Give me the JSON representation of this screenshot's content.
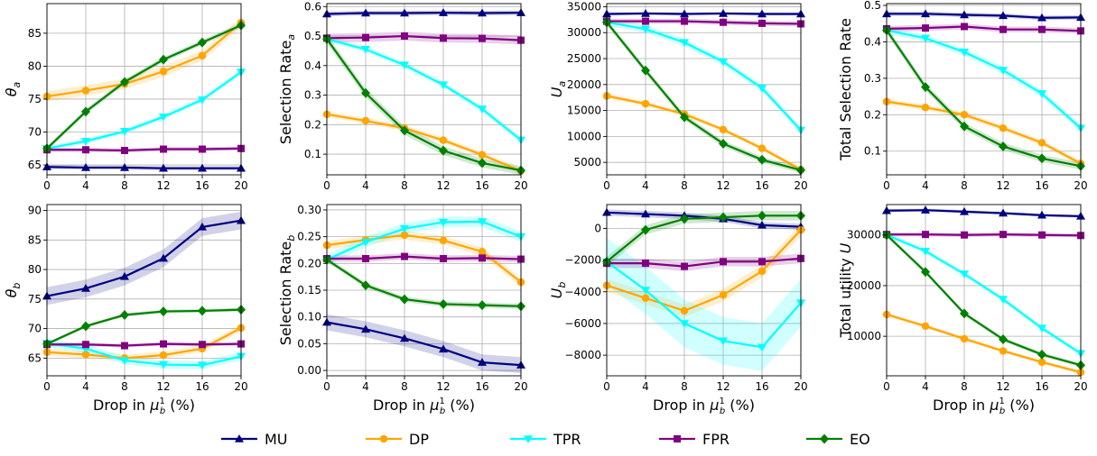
{
  "colors": {
    "MU": "#000080",
    "DP": "#FFA500",
    "TPR": "#00FFFF",
    "FPR": "#800080",
    "EO": "#008000"
  },
  "legend": [
    {
      "key": "MU",
      "label": "MU",
      "marker": "triangle-up"
    },
    {
      "key": "DP",
      "label": "DP",
      "marker": "circle"
    },
    {
      "key": "TPR",
      "label": "TPR",
      "marker": "triangle-down"
    },
    {
      "key": "FPR",
      "label": "FPR",
      "marker": "square"
    },
    {
      "key": "EO",
      "label": "EO",
      "marker": "diamond"
    }
  ],
  "chart_data": [
    {
      "type": "line",
      "ylabel_main": "θ",
      "ylabel_sub": "a",
      "xlabel": "",
      "x": [
        0,
        4,
        8,
        12,
        16,
        20
      ],
      "xlim": [
        0,
        20
      ],
      "ylim": [
        63.5,
        89.5
      ],
      "yticks": [
        65,
        70,
        75,
        80,
        85
      ],
      "grid": true,
      "series": [
        {
          "name": "MU",
          "values": [
            64.7,
            64.6,
            64.6,
            64.5,
            64.5,
            64.5
          ],
          "band": 0.3
        },
        {
          "name": "DP",
          "values": [
            75.4,
            76.3,
            77.3,
            79.2,
            81.6,
            86.6
          ],
          "band": 0.8
        },
        {
          "name": "TPR",
          "values": [
            67.5,
            68.6,
            70.1,
            72.3,
            74.9,
            79.1
          ],
          "band": 0.4
        },
        {
          "name": "FPR",
          "values": [
            67.3,
            67.3,
            67.2,
            67.4,
            67.4,
            67.5
          ],
          "band": 0.3
        },
        {
          "name": "EO",
          "values": [
            67.5,
            73.1,
            77.6,
            81.0,
            83.6,
            86.2
          ],
          "band": 0.4
        }
      ]
    },
    {
      "type": "line",
      "ylabel_main": "Selection Rate",
      "ylabel_sub": "a",
      "xlabel": "",
      "x": [
        0,
        4,
        8,
        12,
        16,
        20
      ],
      "xlim": [
        0,
        20
      ],
      "ylim": [
        0.03,
        0.61
      ],
      "yticks": [
        0.1,
        0.2,
        0.3,
        0.4,
        0.5,
        0.6
      ],
      "grid": true,
      "series": [
        {
          "name": "MU",
          "values": [
            0.575,
            0.578,
            0.578,
            0.579,
            0.578,
            0.579
          ],
          "band": 0.008
        },
        {
          "name": "DP",
          "values": [
            0.235,
            0.213,
            0.188,
            0.147,
            0.098,
            0.043
          ],
          "band": 0.01
        },
        {
          "name": "TPR",
          "values": [
            0.49,
            0.455,
            0.402,
            0.335,
            0.253,
            0.148
          ],
          "band": 0.01
        },
        {
          "name": "FPR",
          "values": [
            0.493,
            0.495,
            0.5,
            0.493,
            0.492,
            0.486
          ],
          "band": 0.015
        },
        {
          "name": "EO",
          "values": [
            0.49,
            0.307,
            0.18,
            0.112,
            0.07,
            0.045
          ],
          "band": 0.015
        }
      ]
    },
    {
      "type": "line",
      "ylabel_main": "U",
      "ylabel_sub": "a",
      "xlabel": "",
      "x": [
        0,
        4,
        8,
        12,
        16,
        20
      ],
      "xlim": [
        0,
        20
      ],
      "ylim": [
        2600,
        35600
      ],
      "yticks": [
        5000,
        10000,
        15000,
        20000,
        25000,
        30000,
        35000
      ],
      "grid": true,
      "series": [
        {
          "name": "MU",
          "values": [
            33600,
            33700,
            33600,
            33700,
            33600,
            33600
          ],
          "band": 300
        },
        {
          "name": "DP",
          "values": [
            17800,
            16300,
            14300,
            11300,
            7700,
            3600
          ],
          "band": 500
        },
        {
          "name": "TPR",
          "values": [
            32000,
            30700,
            28100,
            24400,
            19300,
            11200
          ],
          "band": 700
        },
        {
          "name": "FPR",
          "values": [
            32200,
            32200,
            32200,
            32000,
            31800,
            31700
          ],
          "band": 500
        },
        {
          "name": "EO",
          "values": [
            32000,
            22700,
            13700,
            8600,
            5500,
            3500
          ],
          "band": 600
        }
      ]
    },
    {
      "type": "line",
      "ylabel_main": "Total Selection Rate",
      "ylabel_sub": "",
      "xlabel": "",
      "x": [
        0,
        4,
        8,
        12,
        16,
        20
      ],
      "xlim": [
        0,
        20
      ],
      "ylim": [
        0.035,
        0.505
      ],
      "yticks": [
        0.1,
        0.2,
        0.3,
        0.4,
        0.5
      ],
      "grid": true,
      "series": [
        {
          "name": "MU",
          "values": [
            0.477,
            0.477,
            0.474,
            0.472,
            0.466,
            0.467
          ],
          "band": 0.006
        },
        {
          "name": "DP",
          "values": [
            0.236,
            0.22,
            0.2,
            0.163,
            0.123,
            0.066
          ],
          "band": 0.008
        },
        {
          "name": "TPR",
          "values": [
            0.432,
            0.41,
            0.372,
            0.322,
            0.258,
            0.163
          ],
          "band": 0.01
        },
        {
          "name": "FPR",
          "values": [
            0.436,
            0.438,
            0.442,
            0.434,
            0.434,
            0.43
          ],
          "band": 0.008
        },
        {
          "name": "EO",
          "values": [
            0.432,
            0.276,
            0.168,
            0.113,
            0.08,
            0.059
          ],
          "band": 0.01
        }
      ]
    },
    {
      "type": "line",
      "ylabel_main": "θ",
      "ylabel_sub": "b",
      "xlabel": "Drop in μ",
      "x": [
        0,
        4,
        8,
        12,
        16,
        20
      ],
      "xlim": [
        0,
        20
      ],
      "ylim": [
        62.0,
        91.0
      ],
      "yticks": [
        65,
        70,
        75,
        80,
        85,
        90
      ],
      "grid": true,
      "series": [
        {
          "name": "MU",
          "values": [
            75.5,
            76.8,
            78.8,
            81.9,
            87.2,
            88.3
          ],
          "band": 1.5
        },
        {
          "name": "DP",
          "values": [
            66.0,
            65.6,
            65.0,
            65.5,
            66.6,
            70.1
          ],
          "band": 0.6
        },
        {
          "name": "TPR",
          "values": [
            67.5,
            66.6,
            64.6,
            63.9,
            63.8,
            65.3
          ],
          "band": 0.7
        },
        {
          "name": "FPR",
          "values": [
            67.3,
            67.3,
            67.1,
            67.4,
            67.3,
            67.4
          ],
          "band": 0.3
        },
        {
          "name": "EO",
          "values": [
            67.4,
            70.4,
            72.3,
            72.9,
            73.0,
            73.2
          ],
          "band": 0.3
        }
      ]
    },
    {
      "type": "line",
      "ylabel_main": "Selection Rate",
      "ylabel_sub": "b",
      "xlabel": "Drop in μ",
      "x": [
        0,
        4,
        8,
        12,
        16,
        20
      ],
      "xlim": [
        0,
        20
      ],
      "ylim": [
        -0.01,
        0.31
      ],
      "yticks": [
        0.0,
        0.05,
        0.1,
        0.15,
        0.2,
        0.25,
        0.3
      ],
      "grid": true,
      "series": [
        {
          "name": "MU",
          "values": [
            0.09,
            0.077,
            0.06,
            0.04,
            0.015,
            0.01
          ],
          "band": 0.015
        },
        {
          "name": "DP",
          "values": [
            0.234,
            0.244,
            0.253,
            0.243,
            0.222,
            0.165
          ],
          "band": 0.008
        },
        {
          "name": "TPR",
          "values": [
            0.207,
            0.24,
            0.265,
            0.277,
            0.278,
            0.25
          ],
          "band": 0.01
        },
        {
          "name": "FPR",
          "values": [
            0.209,
            0.209,
            0.213,
            0.209,
            0.21,
            0.208
          ],
          "band": 0.006
        },
        {
          "name": "EO",
          "values": [
            0.207,
            0.159,
            0.133,
            0.124,
            0.122,
            0.12
          ],
          "band": 0.005
        }
      ]
    },
    {
      "type": "line",
      "ylabel_main": "U",
      "ylabel_sub": "b",
      "xlabel": "Drop in μ",
      "x": [
        0,
        4,
        8,
        12,
        16,
        20
      ],
      "xlim": [
        0,
        20
      ],
      "ylim": [
        -9300,
        1500
      ],
      "yticks": [
        -8000,
        -6000,
        -4000,
        -2000,
        0
      ],
      "grid": true,
      "series": [
        {
          "name": "MU",
          "values": [
            1000,
            900,
            800,
            600,
            200,
            100
          ],
          "band": 200
        },
        {
          "name": "DP",
          "values": [
            -3600,
            -4400,
            -5200,
            -4200,
            -2700,
            -100
          ],
          "band": 400
        },
        {
          "name": "TPR",
          "values": [
            -2100,
            -3900,
            -6000,
            -7100,
            -7500,
            -4700
          ],
          "band": 1500
        },
        {
          "name": "FPR",
          "values": [
            -2200,
            -2200,
            -2400,
            -2100,
            -2100,
            -1900
          ],
          "band": 300
        },
        {
          "name": "EO",
          "values": [
            -2100,
            -100,
            600,
            700,
            800,
            800
          ],
          "band": 300
        }
      ]
    },
    {
      "type": "line",
      "ylabel_main": "Total utility U",
      "ylabel_sub": "",
      "xlabel": "Drop in μ",
      "x": [
        0,
        4,
        8,
        12,
        16,
        20
      ],
      "xlim": [
        0,
        20
      ],
      "ylim": [
        2200,
        36000
      ],
      "yticks": [
        10000,
        20000,
        30000
      ],
      "grid": true,
      "series": [
        {
          "name": "MU",
          "values": [
            34800,
            34900,
            34600,
            34300,
            33900,
            33700
          ],
          "band": 300
        },
        {
          "name": "DP",
          "values": [
            14300,
            12000,
            9500,
            7100,
            4900,
            2900
          ],
          "band": 400
        },
        {
          "name": "TPR",
          "values": [
            30000,
            26800,
            22300,
            17300,
            11600,
            6600
          ],
          "band": 500
        },
        {
          "name": "FPR",
          "values": [
            30100,
            30100,
            30000,
            30100,
            30000,
            29900
          ],
          "band": 400
        },
        {
          "name": "EO",
          "values": [
            30000,
            22700,
            14500,
            9400,
            6400,
            4300
          ],
          "band": 400
        }
      ]
    }
  ]
}
